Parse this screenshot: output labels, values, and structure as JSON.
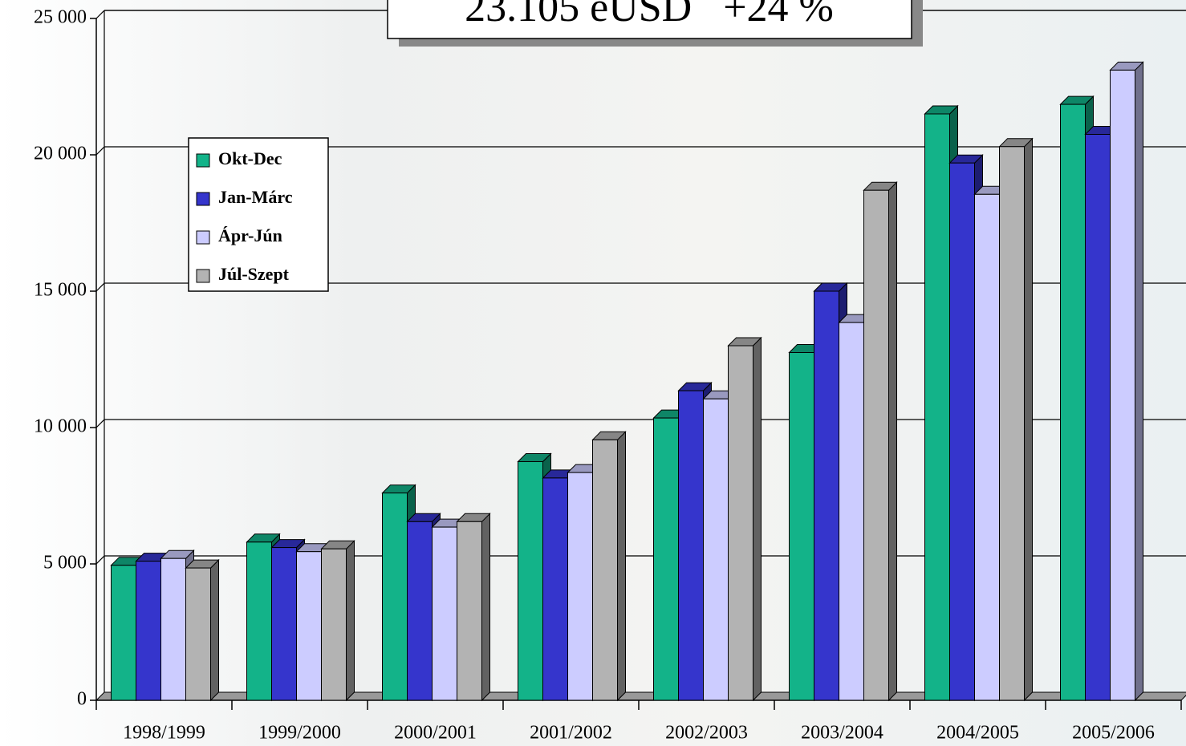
{
  "chart_data": {
    "type": "bar3d",
    "title": "23.105 eUSD   +24 %",
    "categories": [
      "1998/1999",
      "1999/2000",
      "2000/2001",
      "2001/2002",
      "2002/2003",
      "2003/2004",
      "2004/2005",
      "2005/2006"
    ],
    "series": [
      {
        "name": "Okt-Dec",
        "color": "#13b389",
        "values": [
          4950,
          5800,
          7600,
          8750,
          10350,
          12750,
          21500,
          21850
        ]
      },
      {
        "name": "Jan-Márc",
        "color": "#3535cc",
        "values": [
          5100,
          5600,
          6550,
          8150,
          11350,
          15000,
          19700,
          20750
        ]
      },
      {
        "name": "Ápr-Jún",
        "color": "#ccccff",
        "values": [
          5200,
          5450,
          6350,
          8350,
          11050,
          13850,
          18550,
          23105
        ]
      },
      {
        "name": "Júl-Szept",
        "color": "#b3b3b3",
        "values": [
          4850,
          5550,
          6550,
          9550,
          13000,
          18700,
          20300,
          null
        ]
      }
    ],
    "ylim": [
      0,
      25000
    ],
    "yticks": [
      {
        "value": 0,
        "label": "0"
      },
      {
        "value": 5000,
        "label": "5 000"
      },
      {
        "value": 10000,
        "label": "10 000"
      },
      {
        "value": 15000,
        "label": "15 000"
      },
      {
        "value": 20000,
        "label": "20 000"
      },
      {
        "value": 25000,
        "label": "25 000"
      }
    ],
    "grid": true
  }
}
